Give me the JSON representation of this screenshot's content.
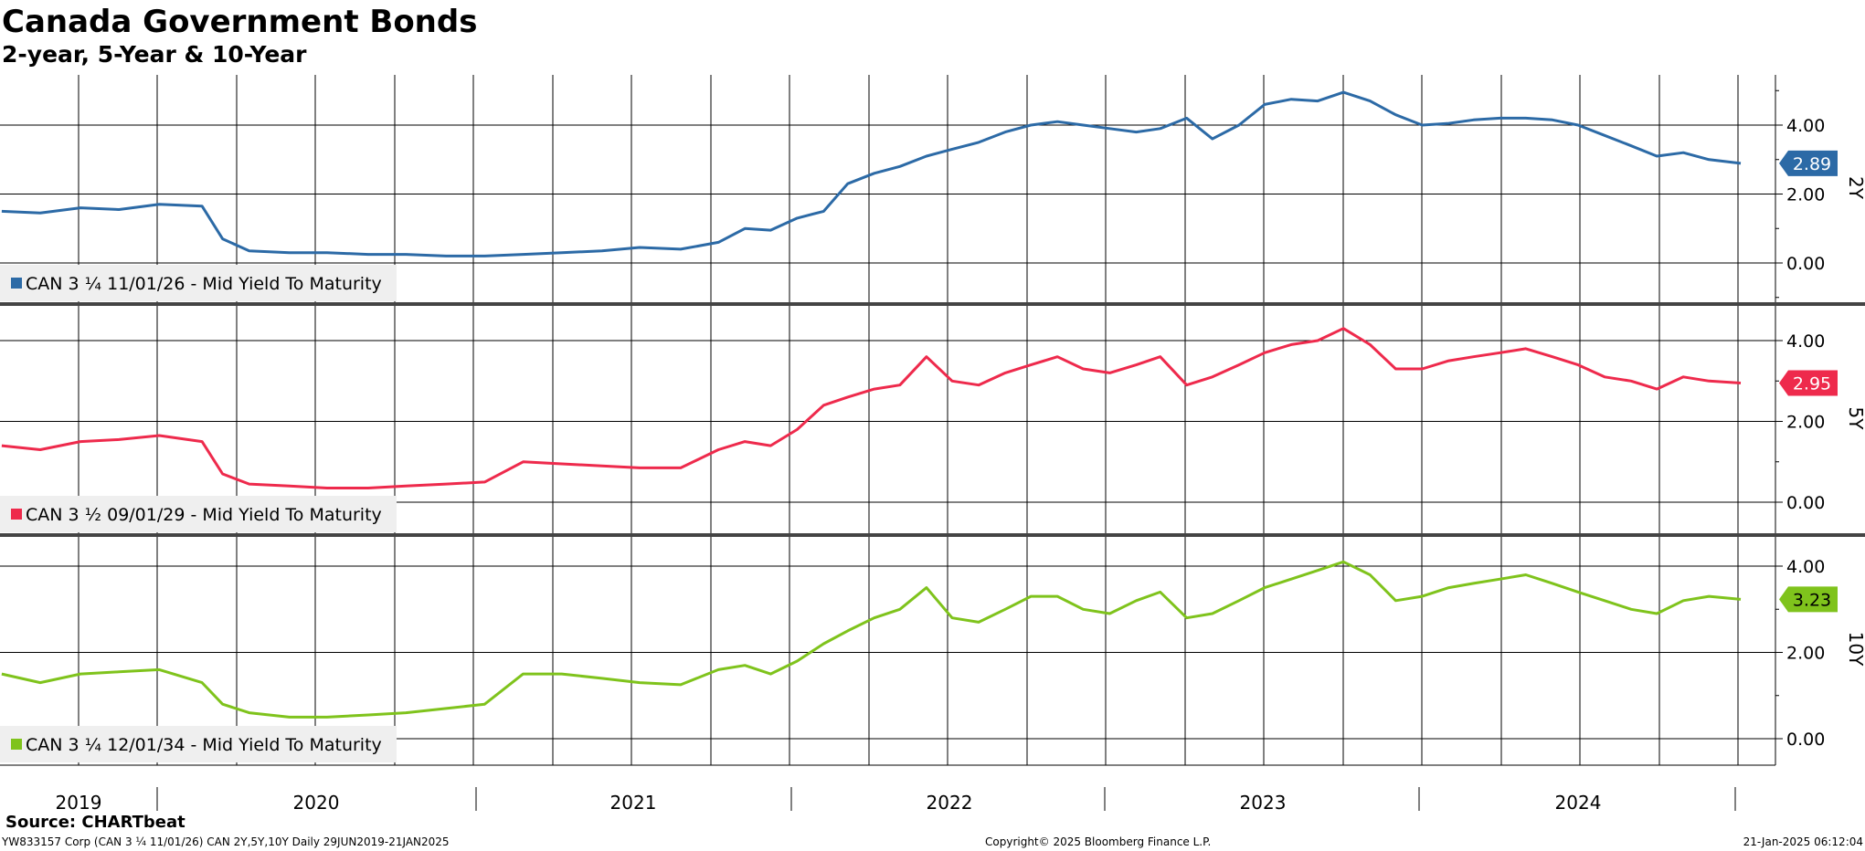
{
  "title": "Canada Government Bonds",
  "subtitle": "2-year, 5-Year & 10-Year",
  "footer": {
    "source": "Source: CHARTbeat",
    "ticker_info": "YW833157 Corp (CAN 3 ¼ 11/01/26) CAN 2Y,5Y,10Y  Daily 29JUN2019-21JAN2025",
    "copyright": "Copyright© 2025 Bloomberg Finance L.P.",
    "timestamp": "21-Jan-2025 06:12:04"
  },
  "colors": {
    "2y": "#2c6aa6",
    "5y": "#ee2a4c",
    "10y": "#7fc31c"
  },
  "chart_data": [
    {
      "type": "line",
      "panel_label": "2Y",
      "legend_text": "CAN 3 ¼ 11/01/26 - Mid Yield To Maturity",
      "last_value_label": "2.89",
      "y_ticks": [
        "4.00",
        "2.00",
        "0.00"
      ],
      "ylim": [
        -1.0,
        5.9
      ],
      "x_tick_labels": [
        "2019",
        "2020",
        "2021",
        "2022",
        "2023",
        "2024"
      ],
      "x_range": [
        "2019-06-29",
        "2025-01-21"
      ],
      "series": [
        {
          "x": [
            "2019-07-01",
            "2019-08-15",
            "2019-10-01",
            "2019-11-15",
            "2020-01-01",
            "2020-02-20",
            "2020-03-15",
            "2020-04-15",
            "2020-06-01",
            "2020-07-15",
            "2020-09-01",
            "2020-10-15",
            "2020-12-01",
            "2021-01-15",
            "2021-03-01",
            "2021-04-15",
            "2021-06-01",
            "2021-07-15",
            "2021-09-01",
            "2021-10-15",
            "2021-11-15",
            "2021-12-15",
            "2022-01-15",
            "2022-02-15",
            "2022-03-15",
            "2022-04-15",
            "2022-05-15",
            "2022-06-15",
            "2022-07-15",
            "2022-08-15",
            "2022-09-15",
            "2022-10-15",
            "2022-11-15",
            "2022-12-15",
            "2023-01-15",
            "2023-02-15",
            "2023-03-15",
            "2023-04-15",
            "2023-05-15",
            "2023-06-15",
            "2023-07-15",
            "2023-08-15",
            "2023-09-15",
            "2023-10-15",
            "2023-11-15",
            "2023-12-15",
            "2024-01-15",
            "2024-02-15",
            "2024-03-15",
            "2024-04-15",
            "2024-05-15",
            "2024-06-15",
            "2024-07-15",
            "2024-08-15",
            "2024-09-15",
            "2024-10-15",
            "2024-11-15",
            "2024-12-15",
            "2025-01-21"
          ],
          "y": [
            1.5,
            1.45,
            1.6,
            1.55,
            1.7,
            1.65,
            0.7,
            0.35,
            0.3,
            0.3,
            0.25,
            0.25,
            0.2,
            0.2,
            0.25,
            0.3,
            0.35,
            0.45,
            0.4,
            0.6,
            1.0,
            0.95,
            1.3,
            1.5,
            2.3,
            2.6,
            2.8,
            3.1,
            3.3,
            3.5,
            3.8,
            4.0,
            4.1,
            4.0,
            3.9,
            3.8,
            3.9,
            4.2,
            3.6,
            4.0,
            4.6,
            4.75,
            4.7,
            4.95,
            4.7,
            4.3,
            4.0,
            4.05,
            4.15,
            4.2,
            4.2,
            4.15,
            4.0,
            3.7,
            3.4,
            3.1,
            3.2,
            3.0,
            2.89
          ]
        }
      ]
    },
    {
      "type": "line",
      "panel_label": "5Y",
      "legend_text": "CAN 3 ½ 09/01/29 - Mid Yield To Maturity",
      "last_value_label": "2.95",
      "y_ticks": [
        "4.00",
        "2.00",
        "0.00"
      ],
      "ylim": [
        -1.0,
        5.0
      ],
      "x_tick_labels": [
        "2019",
        "2020",
        "2021",
        "2022",
        "2023",
        "2024"
      ],
      "x_range": [
        "2019-06-29",
        "2025-01-21"
      ],
      "series": [
        {
          "x": [
            "2019-07-01",
            "2019-08-15",
            "2019-10-01",
            "2019-11-15",
            "2020-01-01",
            "2020-02-20",
            "2020-03-15",
            "2020-04-15",
            "2020-06-01",
            "2020-07-15",
            "2020-09-01",
            "2020-10-15",
            "2020-12-01",
            "2021-01-15",
            "2021-03-01",
            "2021-04-15",
            "2021-06-01",
            "2021-07-15",
            "2021-09-01",
            "2021-10-15",
            "2021-11-15",
            "2021-12-15",
            "2022-01-15",
            "2022-02-15",
            "2022-03-15",
            "2022-04-15",
            "2022-05-15",
            "2022-06-15",
            "2022-07-15",
            "2022-08-15",
            "2022-09-15",
            "2022-10-15",
            "2022-11-15",
            "2022-12-15",
            "2023-01-15",
            "2023-02-15",
            "2023-03-15",
            "2023-04-15",
            "2023-05-15",
            "2023-06-15",
            "2023-07-15",
            "2023-08-15",
            "2023-09-15",
            "2023-10-15",
            "2023-11-15",
            "2023-12-15",
            "2024-01-15",
            "2024-02-15",
            "2024-03-15",
            "2024-04-15",
            "2024-05-15",
            "2024-06-15",
            "2024-07-15",
            "2024-08-15",
            "2024-09-15",
            "2024-10-15",
            "2024-11-15",
            "2024-12-15",
            "2025-01-21"
          ],
          "y": [
            1.4,
            1.3,
            1.5,
            1.55,
            1.65,
            1.5,
            0.7,
            0.45,
            0.4,
            0.35,
            0.35,
            0.4,
            0.45,
            0.5,
            1.0,
            0.95,
            0.9,
            0.85,
            0.85,
            1.3,
            1.5,
            1.4,
            1.8,
            2.4,
            2.6,
            2.8,
            2.9,
            3.6,
            3.0,
            2.9,
            3.2,
            3.4,
            3.6,
            3.3,
            3.2,
            3.4,
            3.6,
            2.9,
            3.1,
            3.4,
            3.7,
            3.9,
            4.0,
            4.3,
            3.9,
            3.3,
            3.3,
            3.5,
            3.6,
            3.7,
            3.8,
            3.6,
            3.4,
            3.1,
            3.0,
            2.8,
            3.1,
            3.0,
            2.95
          ]
        }
      ]
    },
    {
      "type": "line",
      "panel_label": "10Y",
      "legend_text": "CAN 3 ¼ 12/01/34 - Mid Yield To Maturity",
      "last_value_label": "3.23",
      "y_ticks": [
        "4.00",
        "2.00",
        "0.00"
      ],
      "ylim": [
        -0.65,
        4.6
      ],
      "x_tick_labels": [
        "2019",
        "2020",
        "2021",
        "2022",
        "2023",
        "2024"
      ],
      "x_range": [
        "2019-06-29",
        "2025-01-21"
      ],
      "series": [
        {
          "x": [
            "2019-07-01",
            "2019-08-15",
            "2019-10-01",
            "2019-11-15",
            "2020-01-01",
            "2020-02-20",
            "2020-03-15",
            "2020-04-15",
            "2020-06-01",
            "2020-07-15",
            "2020-09-01",
            "2020-10-15",
            "2020-12-01",
            "2021-01-15",
            "2021-03-01",
            "2021-04-15",
            "2021-06-01",
            "2021-07-15",
            "2021-09-01",
            "2021-10-15",
            "2021-11-15",
            "2021-12-15",
            "2022-01-15",
            "2022-02-15",
            "2022-03-15",
            "2022-04-15",
            "2022-05-15",
            "2022-06-15",
            "2022-07-15",
            "2022-08-15",
            "2022-09-15",
            "2022-10-15",
            "2022-11-15",
            "2022-12-15",
            "2023-01-15",
            "2023-02-15",
            "2023-03-15",
            "2023-04-15",
            "2023-05-15",
            "2023-06-15",
            "2023-07-15",
            "2023-08-15",
            "2023-09-15",
            "2023-10-15",
            "2023-11-15",
            "2023-12-15",
            "2024-01-15",
            "2024-02-15",
            "2024-03-15",
            "2024-04-15",
            "2024-05-15",
            "2024-06-15",
            "2024-07-15",
            "2024-08-15",
            "2024-09-15",
            "2024-10-15",
            "2024-11-15",
            "2024-12-15",
            "2025-01-21"
          ],
          "y": [
            1.5,
            1.3,
            1.5,
            1.55,
            1.6,
            1.3,
            0.8,
            0.6,
            0.5,
            0.5,
            0.55,
            0.6,
            0.7,
            0.8,
            1.5,
            1.5,
            1.4,
            1.3,
            1.25,
            1.6,
            1.7,
            1.5,
            1.8,
            2.2,
            2.5,
            2.8,
            3.0,
            3.5,
            2.8,
            2.7,
            3.0,
            3.3,
            3.3,
            3.0,
            2.9,
            3.2,
            3.4,
            2.8,
            2.9,
            3.2,
            3.5,
            3.7,
            3.9,
            4.1,
            3.8,
            3.2,
            3.3,
            3.5,
            3.6,
            3.7,
            3.8,
            3.6,
            3.4,
            3.2,
            3.0,
            2.9,
            3.2,
            3.3,
            3.23
          ]
        }
      ]
    }
  ]
}
